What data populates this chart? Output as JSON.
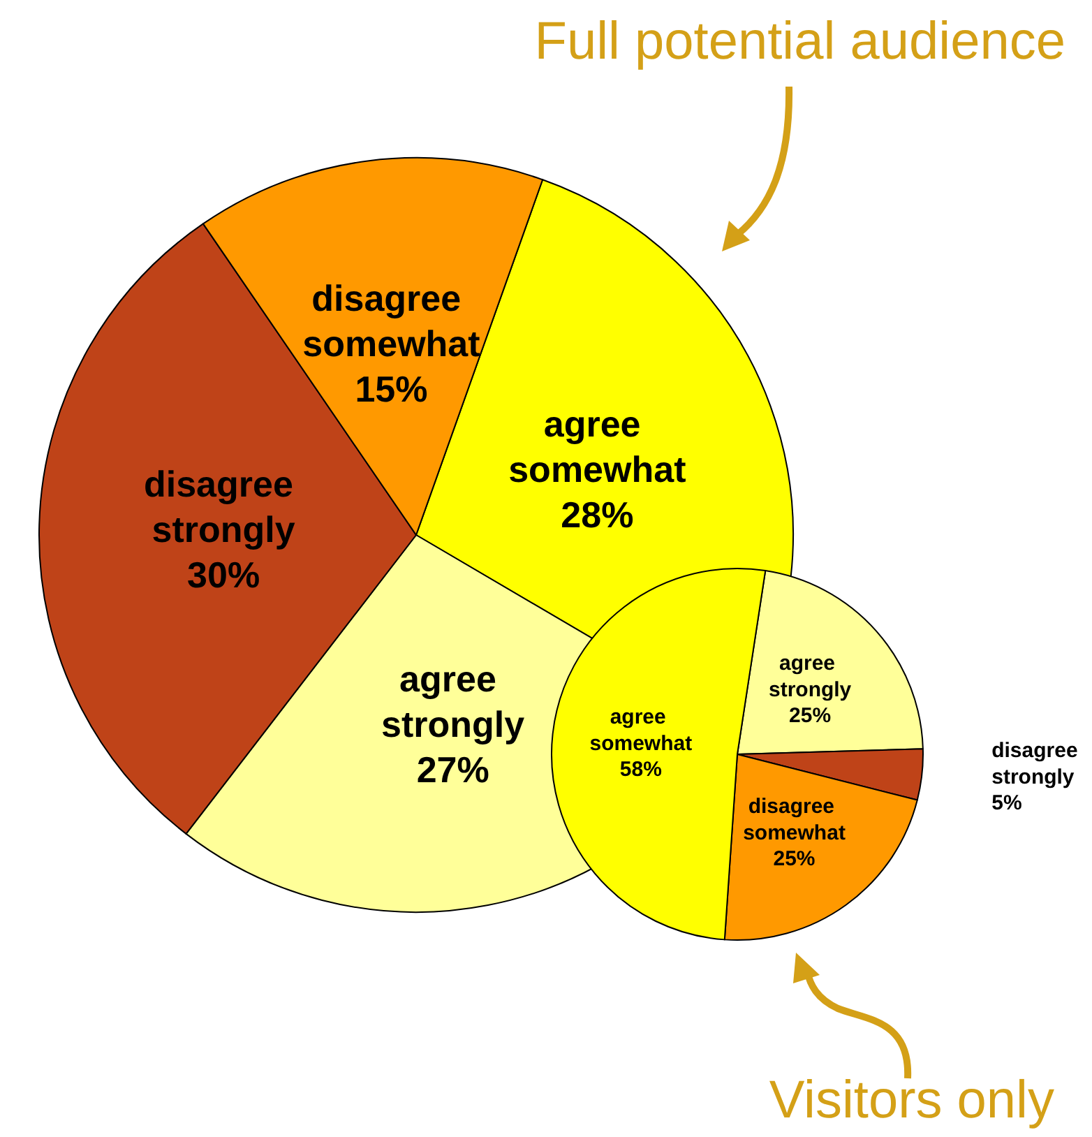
{
  "chart_data": [
    {
      "type": "pie",
      "title": "Full potential audience",
      "categories": [
        "agree somewhat",
        "agree strongly",
        "disagree strongly",
        "disagree somewhat"
      ],
      "values": [
        28,
        27,
        30,
        15
      ],
      "value_labels": [
        "28%",
        "27%",
        "30%",
        "15%"
      ],
      "colors": [
        "#ffff00",
        "#ffff99",
        "#bf4318",
        "#ff9900"
      ],
      "legend": false
    },
    {
      "type": "pie",
      "title": "Visitors only",
      "categories": [
        "agree strongly",
        "disagree strongly",
        "disagree somewhat",
        "agree somewhat"
      ],
      "values": [
        25,
        5,
        25,
        58
      ],
      "value_labels": [
        "25%",
        "5%",
        "25%",
        "58%"
      ],
      "colors": [
        "#ffff99",
        "#bf4318",
        "#ff9900",
        "#ffff00"
      ],
      "legend": false
    }
  ]
}
